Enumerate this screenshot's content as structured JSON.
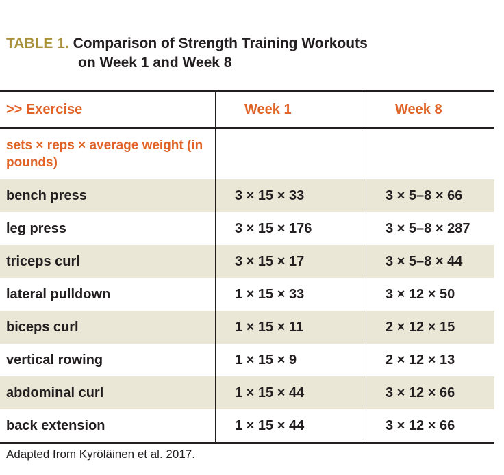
{
  "caption": {
    "label": "TABLE 1.",
    "title_line1": "Comparison of Strength Training Workouts",
    "title_line2": "on Week 1 and Week 8"
  },
  "table": {
    "headers": [
      ">> Exercise",
      "Week 1",
      "Week 8"
    ],
    "units_note": "sets × reps × average weight (in pounds)",
    "rows": [
      {
        "exercise": "bench press",
        "week1": "3 × 15 × 33",
        "week8": "3 × 5–8 × 66"
      },
      {
        "exercise": "leg press",
        "week1": "3 × 15 × 176",
        "week8": "3 × 5–8 × 287"
      },
      {
        "exercise": "triceps curl",
        "week1": "3 × 15 × 17",
        "week8": "3 × 5–8 × 44"
      },
      {
        "exercise": "lateral pulldown",
        "week1": "1 × 15 × 33",
        "week8": "3 × 12 × 50"
      },
      {
        "exercise": "biceps curl",
        "week1": "1 × 15 × 11",
        "week8": "2 × 12 × 15"
      },
      {
        "exercise": "vertical rowing",
        "week1": "1 × 15 × 9",
        "week8": "2 × 12 × 13"
      },
      {
        "exercise": "abdominal curl",
        "week1": "1 × 15 × 44",
        "week8": "3 × 12 × 66"
      },
      {
        "exercise": "back extension",
        "week1": "1 × 15 × 44",
        "week8": "3 × 12 × 66"
      }
    ]
  },
  "source": "Adapted from Kyröläinen et al. 2017.",
  "colors": {
    "label": "#a8913a",
    "accent": "#e06428",
    "shade": "#ebe7d6"
  }
}
